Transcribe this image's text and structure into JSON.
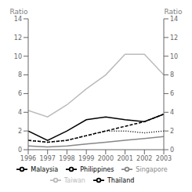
{
  "chart_data": {
    "type": "line",
    "y_label": "Ratio",
    "y2_label": "Ratio",
    "x": [
      1996,
      1997,
      1998,
      1999,
      2000,
      2001,
      2002,
      2003
    ],
    "xlim": [
      1996,
      2003
    ],
    "xticks": [
      1996,
      1997,
      1998,
      1999,
      2000,
      2001,
      2002,
      2003
    ],
    "ylim": [
      0,
      14
    ],
    "yticks": [
      0,
      2,
      4,
      6,
      8,
      10,
      12,
      14
    ],
    "y2lim": [
      0,
      14
    ],
    "y2ticks": [
      0,
      2,
      4,
      6,
      8,
      10,
      12,
      14
    ],
    "grid": false,
    "legend": "bottom",
    "series": [
      {
        "name": "Malaysia",
        "color": "#000000",
        "line_style": "solid",
        "values": [
          2.0,
          1.0,
          2.0,
          3.2,
          3.5,
          3.2,
          3.0,
          3.8
        ]
      },
      {
        "name": "Philippines",
        "color": "#000000",
        "line_style": "dotted",
        "values": [
          1.0,
          0.8,
          1.0,
          1.5,
          2.0,
          2.0,
          1.8,
          2.0
        ]
      },
      {
        "name": "Singapore",
        "color": "#888888",
        "line_style": "solid",
        "values": [
          0.4,
          0.3,
          0.4,
          0.6,
          0.8,
          1.0,
          1.2,
          1.4
        ]
      },
      {
        "name": "Taiwan",
        "color": "#bbbbbb",
        "line_style": "solid",
        "values": [
          4.2,
          3.5,
          4.8,
          6.5,
          8.0,
          10.2,
          10.2,
          8.0
        ]
      },
      {
        "name": "Thailand",
        "color": "#000000",
        "line_style": "dashed",
        "values": [
          1.0,
          0.8,
          1.0,
          1.5,
          2.0,
          2.5,
          3.0,
          3.8
        ]
      }
    ]
  }
}
